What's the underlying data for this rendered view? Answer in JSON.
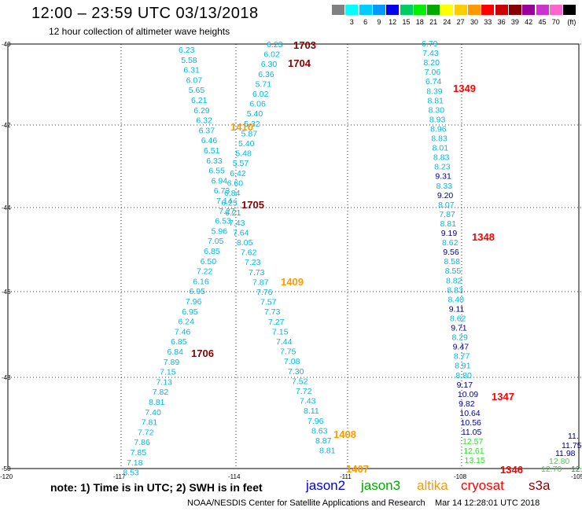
{
  "header": {
    "title": "12:00 – 23:59 UTC 03/13/2018",
    "subtitle": "12 hour collection of altimeter wave heights"
  },
  "legend": {
    "unit": "(ft)",
    "items": [
      {
        "label": "",
        "color": "#808080"
      },
      {
        "label": "3",
        "color": "#00ffff"
      },
      {
        "label": "6",
        "color": "#00ccff"
      },
      {
        "label": "9",
        "color": "#0099ff"
      },
      {
        "label": "12",
        "color": "#0000ee"
      },
      {
        "label": "15",
        "color": "#00cc66"
      },
      {
        "label": "18",
        "color": "#00ee00"
      },
      {
        "label": "21",
        "color": "#00aa00"
      },
      {
        "label": "24",
        "color": "#ffff00"
      },
      {
        "label": "27",
        "color": "#ffcc00"
      },
      {
        "label": "30",
        "color": "#ff9900"
      },
      {
        "label": "33",
        "color": "#ff0000"
      },
      {
        "label": "36",
        "color": "#cc0000"
      },
      {
        "label": "39",
        "color": "#880000"
      },
      {
        "label": "42",
        "color": "#990099"
      },
      {
        "label": "45",
        "color": "#cc33cc"
      },
      {
        "label": "70",
        "color": "#ff66cc"
      },
      {
        "label": "",
        "color": "#000000"
      }
    ]
  },
  "axes": {
    "lat_labels": [
      "-40",
      "-42",
      "-44",
      "-46",
      "-48",
      "-50"
    ],
    "lon_labels": [
      "-120",
      "-117",
      "-114",
      "-111",
      "-108",
      "-105"
    ]
  },
  "colors": {
    "jason2": "#0000dd",
    "jason3": "#00aa00",
    "altika": "#ff9900",
    "cryosat": "#ff0000",
    "s3a": "#880000",
    "cyan_text": "#00b8e0",
    "dark_blue": "#000099",
    "light_green": "#33dd33"
  },
  "tracks": {
    "s3a_1706": {
      "color": "cyan",
      "values": [
        "6.23",
        "5.58",
        "6.31",
        "6.07",
        "5.65",
        "6.21",
        "6.29",
        "6.32",
        "6.37",
        "6.46",
        "6.51",
        "6.33",
        "6.55",
        "6.94",
        "6.73",
        "7.14",
        "7.27",
        "6.53",
        "5.96",
        "7.05",
        "6.85",
        "6.50",
        "7.22",
        "6.16",
        "6.95",
        "7.96",
        "6.95",
        "6.24",
        "7.46",
        "6.85",
        "6.84",
        "7.89",
        "7.15",
        "7.13",
        "7.82",
        "8.81",
        "7.40",
        "7.81",
        "7.72",
        "7.86",
        "7.85",
        "7.18",
        "8.53"
      ]
    },
    "s3a_1704": {
      "color": "cyan",
      "values": [
        "6.23",
        "6.02",
        "6.30",
        "6.36",
        "5.71",
        "6.02",
        "6.06",
        "5.40",
        "5.32",
        "5.87",
        "5.40",
        "5.48",
        "5.57",
        "6.42",
        "6.60",
        "6.84",
        "6.25",
        "6.21",
        "7.43",
        "7.64",
        "8.05",
        "7.62",
        "7.23",
        "7.73",
        "7.87",
        "7.76",
        "7.57",
        "7.73",
        "7.27",
        "7.15",
        "7.44",
        "7.75",
        "7.08",
        "7.30",
        "7.52",
        "7.72",
        "7.43",
        "8.11",
        "7.96",
        "8.63",
        "8.87",
        "8.81"
      ]
    },
    "cryosat_track": {
      "values": [
        "6.79",
        "7.43",
        "8.20",
        "7.06",
        "6.74",
        "8.39",
        "8.81",
        "8.30",
        "8.93",
        "8.96",
        "8.83",
        "8.01",
        "8.83",
        "8.23",
        "9.31",
        "8.33",
        "9.20",
        "8.07",
        "7.87",
        "8.81",
        "9.19",
        "8.62",
        "9.56",
        "8.58",
        "8.55",
        "8.82",
        "8.83",
        "8.40",
        "9.11",
        "8.62",
        "9.71",
        "8.29",
        "9.47",
        "8.77",
        "8.91",
        "8.80",
        "9.17",
        "10.09",
        "9.82",
        "10.64",
        "10.56",
        "11.05",
        "12.57",
        "12.61",
        "13.15"
      ],
      "dark": [
        "9.31",
        "9.20",
        "9.19",
        "9.56",
        "9.11",
        "9.71",
        "9.47",
        "9.17",
        "10.09",
        "9.82",
        "10.64",
        "10.56",
        "11.05"
      ],
      "green": [
        "12.57",
        "12.61",
        "13.15"
      ]
    },
    "right_edge": {
      "values": [
        "11.",
        "11.75",
        "11.98",
        "12.80",
        "12.70",
        "12."
      ]
    }
  },
  "track_labels": [
    {
      "text": "1703",
      "sat": "s3a"
    },
    {
      "text": "1704",
      "sat": "s3a"
    },
    {
      "text": "1349",
      "sat": "cryosat"
    },
    {
      "text": "1410",
      "sat": "altika"
    },
    {
      "text": "1705",
      "sat": "s3a"
    },
    {
      "text": "1348",
      "sat": "cryosat"
    },
    {
      "text": "1409",
      "sat": "altika"
    },
    {
      "text": "1706",
      "sat": "s3a"
    },
    {
      "text": "1347",
      "sat": "cryosat"
    },
    {
      "text": "1408",
      "sat": "altika"
    },
    {
      "text": "1407",
      "sat": "altika"
    },
    {
      "text": "1346",
      "sat": "cryosat"
    }
  ],
  "footer": {
    "note": "note: 1) Time is in UTC; 2) SWH is in feet",
    "sat_names": [
      "jason2",
      "jason3",
      "altika",
      "cryosat",
      "s3a"
    ],
    "credit": "NOAA/NESDIS Center for Satellite Applications and Research",
    "timestamp": "Mar 14 12:28:01 UTC 2018"
  }
}
